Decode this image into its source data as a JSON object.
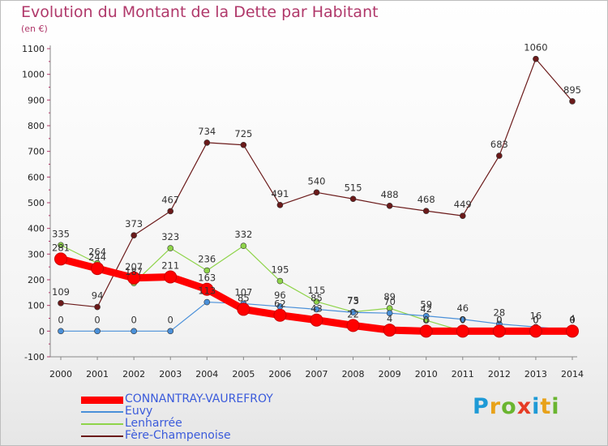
{
  "chart_data": {
    "type": "line",
    "title": "Evolution du Montant de la Dette par Habitant",
    "subtitle": "(en €)",
    "xlabel": "",
    "ylabel": "",
    "categories": [
      "2000",
      "2001",
      "2002",
      "2003",
      "2004",
      "2005",
      "2006",
      "2007",
      "2008",
      "2009",
      "2010",
      "2011",
      "2012",
      "2013",
      "2014"
    ],
    "ylim": [
      -100,
      1100
    ],
    "yticks": [
      -100,
      0,
      100,
      200,
      300,
      400,
      500,
      600,
      700,
      800,
      900,
      1000,
      1100
    ],
    "grid": false,
    "legend_position": "bottom-left",
    "series": [
      {
        "name": "CONNANTRAY-VAUREFROY",
        "color": "#ff0000",
        "values": [
          281,
          244,
          207,
          211,
          163,
          85,
          62,
          43,
          22,
          4,
          0,
          0,
          0,
          0,
          0
        ],
        "labels": [
          "281",
          "244",
          "207",
          "211",
          "163",
          "85",
          "62",
          "43",
          "22",
          "4",
          "0",
          "0",
          "0",
          "0",
          "0"
        ]
      },
      {
        "name": "Euvy",
        "color": "#4a90d9",
        "values": [
          0,
          0,
          0,
          0,
          113,
          107,
          96,
          85,
          73,
          70,
          59,
          46,
          28,
          16,
          4
        ],
        "labels": [
          "0",
          "0",
          "0",
          "0",
          "113",
          "107",
          "96",
          "85",
          "73",
          "70",
          "59",
          "46",
          "28",
          "16",
          "4"
        ]
      },
      {
        "name": "Lenharrée",
        "color": "#8fd44a",
        "values": [
          335,
          264,
          187,
          323,
          236,
          332,
          195,
          115,
          75,
          89,
          42,
          0,
          0,
          0,
          0
        ],
        "labels": [
          "335",
          "264",
          "187",
          "323",
          "236",
          "332",
          "195",
          "115",
          "75",
          "89",
          "42",
          "0",
          "0",
          "0",
          "0"
        ]
      },
      {
        "name": "Fère-Champenoise",
        "color": "#6b1a1a",
        "values": [
          109,
          94,
          373,
          467,
          734,
          725,
          491,
          540,
          515,
          488,
          468,
          449,
          683,
          1060,
          895
        ],
        "labels": [
          "109",
          "94",
          "373",
          "467",
          "734",
          "725",
          "491",
          "540",
          "515",
          "488",
          "468",
          "449",
          "683",
          "1060",
          "895"
        ]
      }
    ]
  },
  "branding": {
    "text": "Proxiti",
    "letters": [
      "P",
      "r",
      "o",
      "x",
      "i",
      "t",
      "i"
    ],
    "colors": [
      "#1e9ad6",
      "#e8a21a",
      "#6ab530",
      "#e63c25",
      "#1e9ad6",
      "#e8a21a",
      "#6ab530"
    ]
  }
}
